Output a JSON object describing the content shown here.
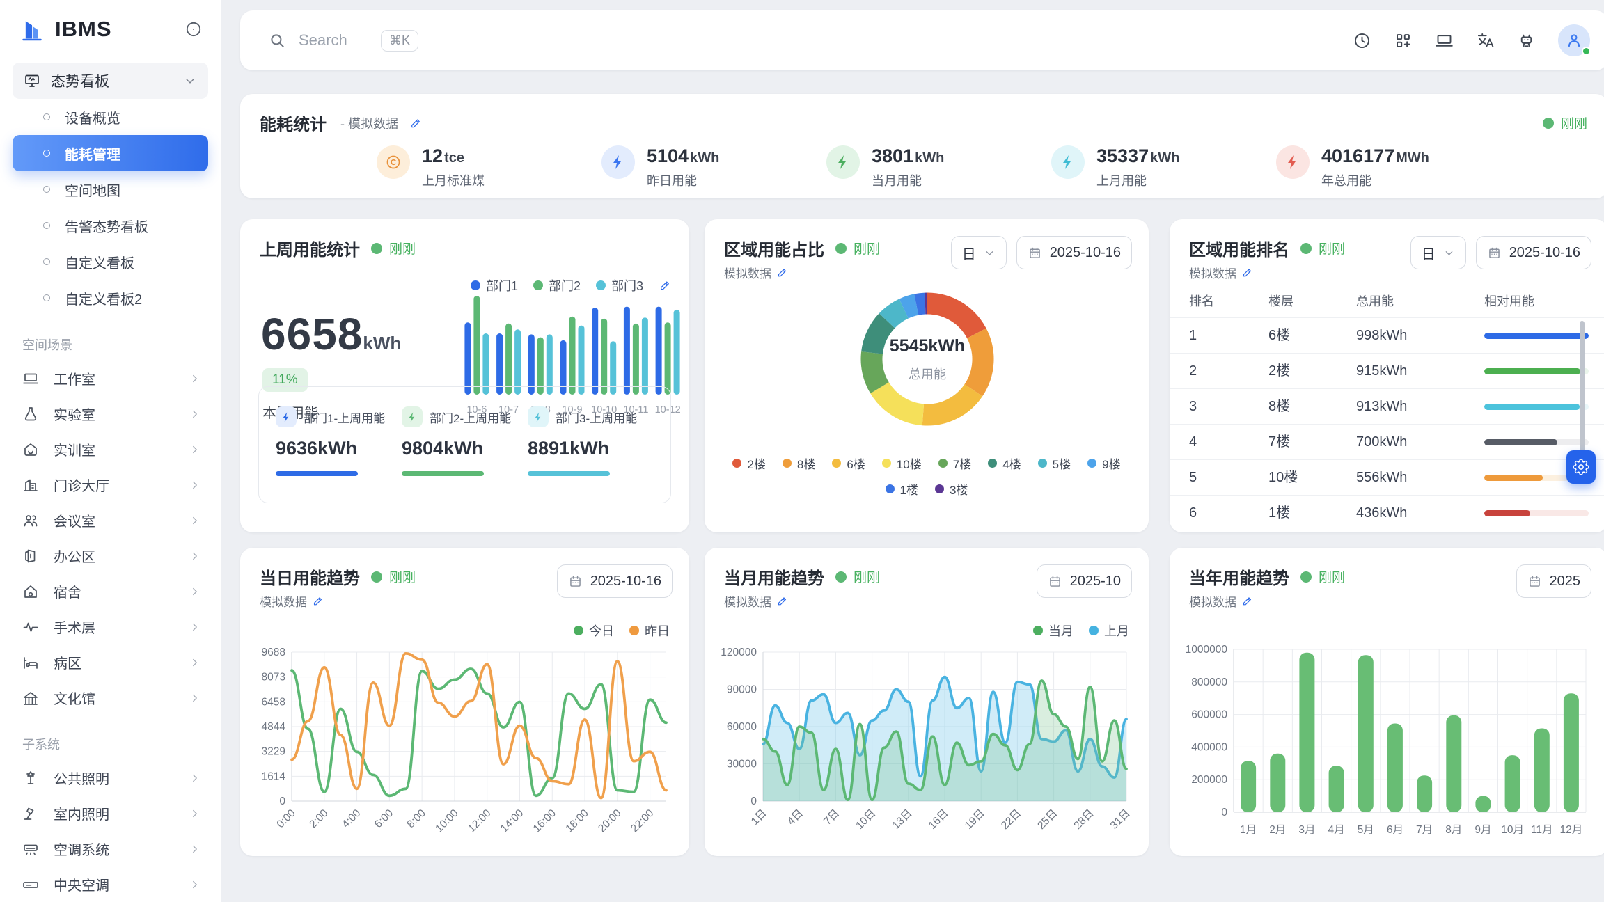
{
  "sidebar": {
    "logo": "IBMS",
    "dashboard_group": {
      "label": "态势看板"
    },
    "dashboard_items": [
      {
        "label": "设备概览",
        "active": false
      },
      {
        "label": "能耗管理",
        "active": true
      },
      {
        "label": "空间地图",
        "active": false
      },
      {
        "label": "告警态势看板",
        "active": false
      },
      {
        "label": "自定义看板",
        "active": false
      },
      {
        "label": "自定义看板2",
        "active": false
      }
    ],
    "sections": [
      {
        "label": "空间场景",
        "items": [
          {
            "label": "工作室",
            "icon": "laptop"
          },
          {
            "label": "实验室",
            "icon": "flask"
          },
          {
            "label": "实训室",
            "icon": "house-smile"
          },
          {
            "label": "门诊大厅",
            "icon": "hospital"
          },
          {
            "label": "会议室",
            "icon": "users"
          },
          {
            "label": "办公区",
            "icon": "office"
          },
          {
            "label": "宿舍",
            "icon": "home"
          },
          {
            "label": "手术层",
            "icon": "pulse"
          },
          {
            "label": "病区",
            "icon": "bed"
          },
          {
            "label": "文化馆",
            "icon": "bank"
          }
        ]
      },
      {
        "label": "子系统",
        "items": [
          {
            "label": "公共照明",
            "icon": "streetlamp"
          },
          {
            "label": "室内照明",
            "icon": "desklamp"
          },
          {
            "label": "空调系统",
            "icon": "ac"
          },
          {
            "label": "中央空调",
            "icon": "ac2"
          },
          {
            "label": "新风系统",
            "icon": "fan"
          }
        ]
      }
    ]
  },
  "topbar": {
    "search_placeholder": "Search",
    "shortcut": "⌘K",
    "icons": [
      {
        "name": "clock"
      },
      {
        "name": "apps"
      },
      {
        "name": "laptop"
      },
      {
        "name": "translate"
      },
      {
        "name": "robot"
      }
    ]
  },
  "energy_stats": {
    "title": "能耗统计",
    "subtitle": "- 模拟数据",
    "status": "刚刚",
    "items": [
      {
        "value": "12",
        "unit": "tce",
        "label": "上月标准煤",
        "icon": "circlec",
        "color": "#e8913a",
        "bg": "#fdeeda"
      },
      {
        "value": "5104",
        "unit": "kWh",
        "label": "昨日用能",
        "icon": "bolt",
        "color": "#3b76f0",
        "bg": "#e3ecfd"
      },
      {
        "value": "3801",
        "unit": "kWh",
        "label": "当月用能",
        "icon": "bolt",
        "color": "#4cae5f",
        "bg": "#e2f4e6"
      },
      {
        "value": "35337",
        "unit": "kWh",
        "label": "上月用能",
        "icon": "bolt",
        "color": "#3fbcd4",
        "bg": "#e0f5f9"
      },
      {
        "value": "4016177",
        "unit": "MWh",
        "label": "年总用能",
        "icon": "bolt",
        "color": "#e25c50",
        "bg": "#fbe5e2"
      }
    ]
  },
  "weekly": {
    "title": "上周用能统计",
    "status": "刚刚",
    "total_value": "6658",
    "total_unit": "kWh",
    "delta": "11%",
    "delta_label": "本周用能",
    "chart_data": {
      "type": "bar",
      "categories": [
        "10-6",
        "10-7",
        "10-8",
        "10-9",
        "10-10",
        "10-11",
        "10-12"
      ],
      "series": [
        {
          "name": "部门1",
          "color": "#2e6be6",
          "values": [
            73,
            62,
            61,
            55,
            88,
            89,
            89
          ]
        },
        {
          "name": "部门2",
          "color": "#5cb874",
          "values": [
            100,
            72,
            58,
            79,
            77,
            72,
            73
          ]
        },
        {
          "name": "部门3",
          "color": "#56c2d8",
          "values": [
            62,
            66,
            61,
            70,
            54,
            78,
            86
          ]
        }
      ],
      "ylim": [
        0,
        100
      ]
    },
    "dept_cards": [
      {
        "label": "部门1-上周用能",
        "value": "9636kWh",
        "color": "#2e6be6",
        "bg": "#e3ecfd"
      },
      {
        "label": "部门2-上周用能",
        "value": "9804kWh",
        "color": "#5cb874",
        "bg": "#e2f4e6"
      },
      {
        "label": "部门3-上周用能",
        "value": "8891kWh",
        "color": "#56c2d8",
        "bg": "#e0f5f9"
      }
    ]
  },
  "donut_card": {
    "title": "区域用能占比",
    "status": "刚刚",
    "source": "模拟数据",
    "period": "日",
    "date": "2025-10-16",
    "center_value": "5545kWh",
    "center_label": "总用能",
    "chart_data": {
      "type": "pie",
      "labels": [
        "2楼",
        "8楼",
        "6楼",
        "10楼",
        "7楼",
        "4楼",
        "5楼",
        "9楼",
        "1楼",
        "3楼"
      ],
      "values": [
        960,
        950,
        930,
        840,
        580,
        570,
        330,
        210,
        140,
        35
      ],
      "colors": [
        "#e05a3a",
        "#ef9d3a",
        "#f3bc3f",
        "#f5e05a",
        "#67a65a",
        "#3e8e7a",
        "#4db7c9",
        "#4da3ea",
        "#3b74e4",
        "#5b3794"
      ],
      "unit": "kWh",
      "total": "5545kWh",
      "total_label": "总用能"
    }
  },
  "ranking": {
    "title": "区域用能排名",
    "status": "刚刚",
    "source": "模拟数据",
    "period": "日",
    "date": "2025-10-16",
    "headers": [
      "排名",
      "楼层",
      "总用能",
      "相对用能"
    ],
    "rows": [
      {
        "rank": "1",
        "floor": "6楼",
        "energy": "998kWh",
        "pct": 100,
        "color": "#2e6be6",
        "track": "#e7edfb"
      },
      {
        "rank": "2",
        "floor": "2楼",
        "energy": "915kWh",
        "pct": 92,
        "color": "#4caf50",
        "track": "#eaf5eb"
      },
      {
        "rank": "3",
        "floor": "8楼",
        "energy": "913kWh",
        "pct": 91,
        "color": "#4cc3dc",
        "track": "#e9f7fa"
      },
      {
        "rank": "4",
        "floor": "7楼",
        "energy": "700kWh",
        "pct": 70,
        "color": "#575c66",
        "track": "#ededef"
      },
      {
        "rank": "5",
        "floor": "10楼",
        "energy": "556kWh",
        "pct": 56,
        "color": "#ee9a3b",
        "track": "#fcf0df"
      },
      {
        "rank": "6",
        "floor": "1楼",
        "energy": "436kWh",
        "pct": 44,
        "color": "#c8433c",
        "track": "#f9e8e6"
      }
    ]
  },
  "daily": {
    "title": "当日用能趋势",
    "status": "刚刚",
    "source": "模拟数据",
    "date": "2025-10-16",
    "legend": [
      {
        "label": "今日",
        "color": "#4cae5f"
      },
      {
        "label": "昨日",
        "color": "#ef9a3f"
      }
    ],
    "chart_data": {
      "type": "line",
      "x_labels": [
        "0:00",
        "2:00",
        "4:00",
        "6:00",
        "8:00",
        "10:00",
        "12:00",
        "14:00",
        "16:00",
        "18:00",
        "20:00",
        "22:00"
      ],
      "label_step": 2,
      "y_ticks": [
        0,
        1614,
        3229,
        4844,
        6458,
        8073,
        9688
      ],
      "series": [
        {
          "name": "今日",
          "color": "#5cb874",
          "values": [
            8500,
            4700,
            600,
            6000,
            3200,
            1700,
            350,
            800,
            8450,
            7300,
            7900,
            8600,
            7000,
            4800,
            6450,
            350,
            1500,
            7000,
            6000,
            7600,
            700,
            600,
            6600,
            5100
          ]
        },
        {
          "name": "昨日",
          "color": "#f0a04c",
          "values": [
            2700,
            5200,
            8700,
            4300,
            800,
            7700,
            4900,
            9600,
            9200,
            6400,
            5500,
            6500,
            8900,
            2400,
            4900,
            2800,
            1300,
            1100,
            5300,
            200,
            9100,
            2600,
            3200,
            700
          ]
        }
      ]
    }
  },
  "monthly": {
    "title": "当月用能趋势",
    "status": "刚刚",
    "source": "模拟数据",
    "date": "2025-10",
    "legend": [
      {
        "label": "当月",
        "color": "#4cae5f"
      },
      {
        "label": "上月",
        "color": "#45b2e0"
      }
    ],
    "chart_data": {
      "type": "area",
      "x_labels": [
        "1日",
        "4日",
        "7日",
        "10日",
        "13日",
        "16日",
        "19日",
        "22日",
        "25日",
        "28日",
        "31日"
      ],
      "label_step": 3,
      "y_ticks": [
        0,
        30000,
        60000,
        90000,
        120000
      ],
      "series": [
        {
          "name": "上月",
          "color": "#49b3e1",
          "fill": "rgba(119,200,235,0.35)",
          "values": [
            46000,
            77000,
            63000,
            42000,
            81000,
            86000,
            63000,
            71000,
            37000,
            65000,
            73000,
            90000,
            80000,
            20000,
            81000,
            100000,
            75000,
            83000,
            24000,
            88000,
            47000,
            96000,
            94000,
            50000,
            48000,
            57000,
            24000,
            50000,
            28000,
            19000,
            66000
          ]
        },
        {
          "name": "当月",
          "color": "#5cb874",
          "fill": "rgba(120,195,140,0.28)",
          "values": [
            50000,
            40000,
            13000,
            60000,
            55000,
            9000,
            42000,
            1000,
            62000,
            1000,
            43000,
            56000,
            14000,
            9000,
            52000,
            13000,
            47000,
            29000,
            32000,
            54000,
            45000,
            25000,
            46000,
            97000,
            70000,
            60000,
            34000,
            92000,
            32000,
            65000,
            26000
          ]
        }
      ]
    }
  },
  "yearly": {
    "title": "当年用能趋势",
    "status": "刚刚",
    "source": "模拟数据",
    "date": "2025",
    "chart_data": {
      "type": "bar",
      "categories": [
        "1月",
        "2月",
        "3月",
        "4月",
        "5月",
        "6月",
        "7月",
        "8月",
        "9月",
        "10月",
        "11月",
        "12月"
      ],
      "values": [
        315000,
        360000,
        980000,
        285000,
        965000,
        545000,
        225000,
        595000,
        100000,
        350000,
        515000,
        730000
      ],
      "color": "#68bd74",
      "y_ticks": [
        0,
        200000,
        400000,
        600000,
        800000,
        1000000
      ],
      "ylim": [
        0,
        1000000
      ]
    }
  }
}
